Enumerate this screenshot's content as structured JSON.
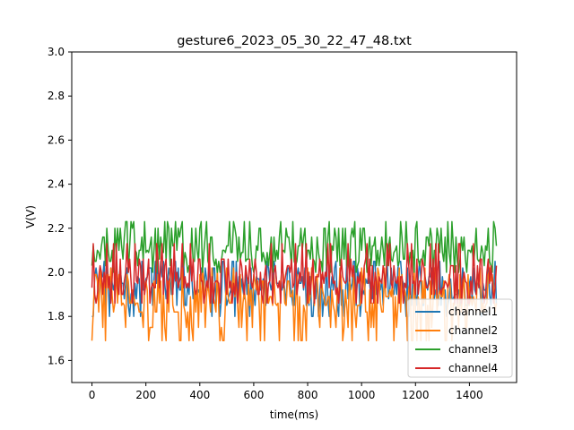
{
  "chart_data": {
    "type": "line",
    "title": "gesture6_2023_05_30_22_47_48.txt",
    "xlabel": "time(ms)",
    "ylabel": "V(V)",
    "xlim": [
      -75,
      1575
    ],
    "ylim": [
      1.5,
      3.0
    ],
    "xticks": [
      0,
      200,
      400,
      600,
      800,
      1000,
      1200,
      1400
    ],
    "yticks": [
      1.6,
      1.8,
      2.0,
      2.2,
      2.4,
      2.6,
      2.8,
      3.0
    ],
    "ytick_labels": [
      "1.6",
      "1.8",
      "2.0",
      "2.2",
      "2.4",
      "2.6",
      "2.8",
      "3.0"
    ],
    "grid": false,
    "legend_position": "lower right",
    "x_range": [
      0,
      1500
    ],
    "sample_step_ms": 5,
    "series": [
      {
        "name": "channel1",
        "color": "#1f77b4",
        "base": 1.95,
        "levels": [
          1.8,
          1.85,
          1.88,
          1.92,
          1.95,
          1.98,
          2.02,
          2.05,
          1.9,
          1.97
        ]
      },
      {
        "name": "channel2",
        "color": "#ff7f0e",
        "base": 1.89,
        "levels": [
          1.69,
          1.75,
          1.82,
          1.86,
          1.89,
          1.92,
          1.96,
          1.99,
          2.02,
          1.85
        ]
      },
      {
        "name": "channel3",
        "color": "#2ca02c",
        "base": 2.08,
        "levels": [
          2.0,
          2.03,
          2.06,
          2.09,
          2.1,
          2.12,
          2.16,
          2.2,
          2.23,
          2.05
        ]
      },
      {
        "name": "channel4",
        "color": "#d62728",
        "base": 1.97,
        "levels": [
          1.86,
          1.9,
          1.93,
          1.96,
          1.98,
          2.0,
          2.03,
          2.06,
          2.13,
          1.95
        ]
      }
    ]
  }
}
